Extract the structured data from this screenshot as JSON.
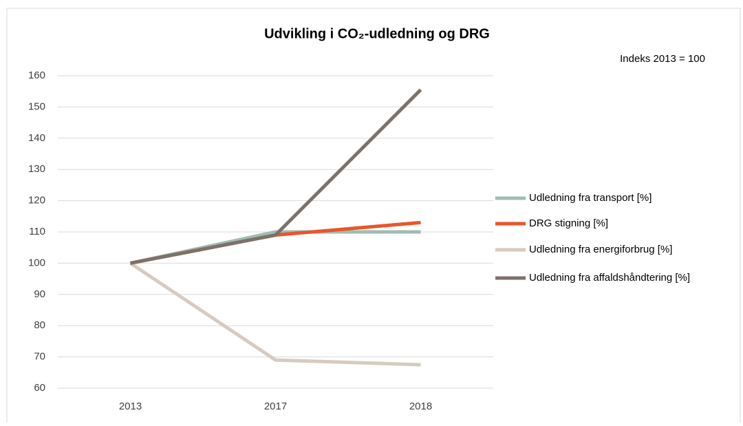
{
  "chart_data": {
    "type": "line",
    "title": "Udvikling i CO₂-udledning og DRG",
    "annotation": "Indeks 2013 = 100",
    "categories": [
      "2013",
      "2017",
      "2018"
    ],
    "series": [
      {
        "name": "Udledning fra transport [%]",
        "color": "#9fbdb3",
        "values": [
          100,
          110,
          110
        ]
      },
      {
        "name": "DRG stigning [%]",
        "color": "#e9552b",
        "values": [
          100,
          109,
          113
        ]
      },
      {
        "name": "Udledning fra energiforbrug [%]",
        "color": "#d5cbc1",
        "values": [
          100,
          69,
          67.5
        ]
      },
      {
        "name": "Udledning fra affaldshåndtering [%]",
        "color": "#7d716b",
        "values": [
          100,
          109,
          155.5
        ]
      }
    ],
    "ylim": [
      60,
      160
    ],
    "yticks": [
      60,
      70,
      80,
      90,
      100,
      110,
      120,
      130,
      140,
      150,
      160
    ],
    "grid": true,
    "legend": "right"
  }
}
